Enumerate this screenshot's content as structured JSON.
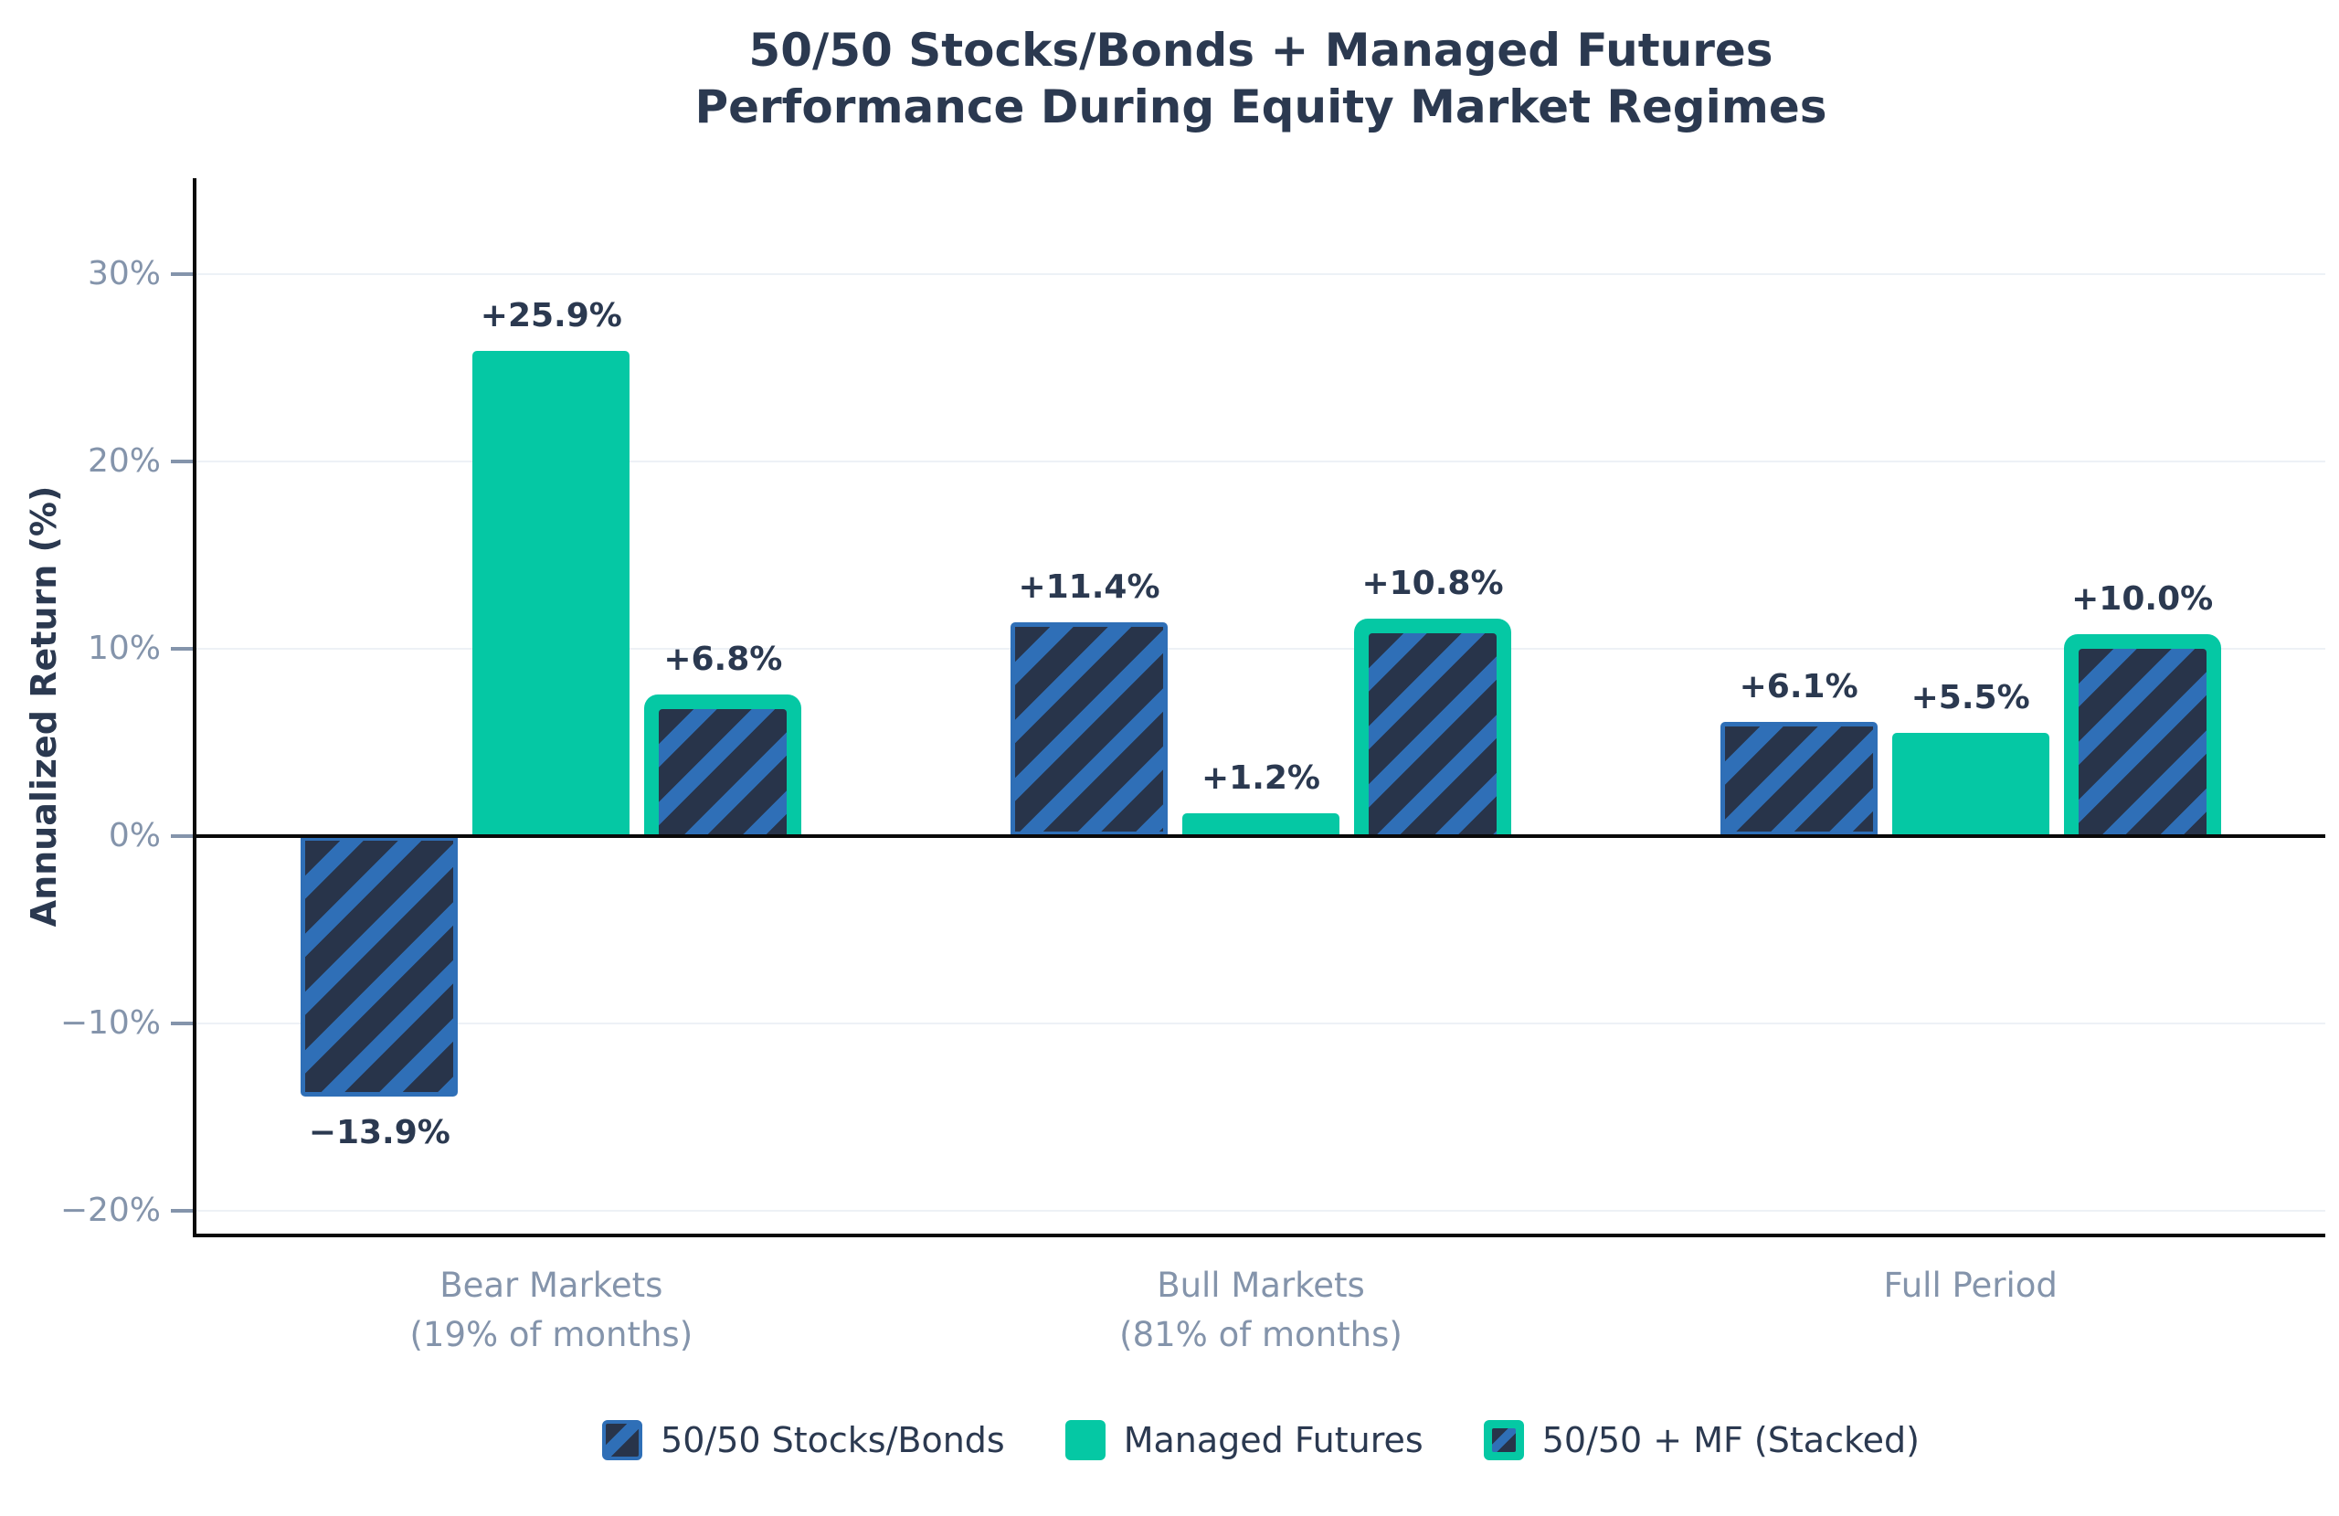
{
  "title": {
    "line1": "50/50 Stocks/Bonds + Managed Futures",
    "line2": "Performance During Equity Market Regimes"
  },
  "chart_data": {
    "type": "bar",
    "title": "50/50 Stocks/Bonds + Managed Futures Performance During Equity Market Regimes",
    "xlabel": "",
    "ylabel": "Annualized Return (%)",
    "ylim": [
      -21.2,
      35
    ],
    "grid": "horizontal",
    "legend_position": "bottom",
    "categories": [
      {
        "line1": "Bear Markets",
        "line2": "(19% of months)"
      },
      {
        "line1": "Bull Markets",
        "line2": "(81% of months)"
      },
      {
        "line1": "Full Period",
        "line2": ""
      }
    ],
    "y_ticks": [
      {
        "value": 30,
        "label": "30%"
      },
      {
        "value": 20,
        "label": "20%"
      },
      {
        "value": 10,
        "label": "10%"
      },
      {
        "value": 0,
        "label": "0%"
      },
      {
        "value": -10,
        "label": "−10%"
      },
      {
        "value": -20,
        "label": "−20%"
      }
    ],
    "series": [
      {
        "name": "50/50 Stocks/Bonds",
        "style": "hatched",
        "values": [
          -13.9,
          11.4,
          6.1
        ],
        "labels": [
          "−13.9%",
          "+11.4%",
          "+6.1%"
        ]
      },
      {
        "name": "Managed Futures",
        "style": "solid",
        "values": [
          25.9,
          1.2,
          5.5
        ],
        "labels": [
          "+25.9%",
          "+1.2%",
          "+5.5%"
        ]
      },
      {
        "name": "50/50 + MF (Stacked)",
        "style": "stacked",
        "values": [
          6.8,
          10.8,
          10.0
        ],
        "labels": [
          "+6.8%",
          "+10.8%",
          "+10.0%"
        ]
      }
    ],
    "colors": {
      "teal": "#05C8A4",
      "navy": "#28344A",
      "stripe_blue": "#2F6FB7",
      "text_dark": "#2B3950",
      "axis_gray": "#8494AB",
      "gridline": "#EDF1F6",
      "axis_line": "#0A0A0A",
      "background": "#FFFFFF"
    }
  }
}
